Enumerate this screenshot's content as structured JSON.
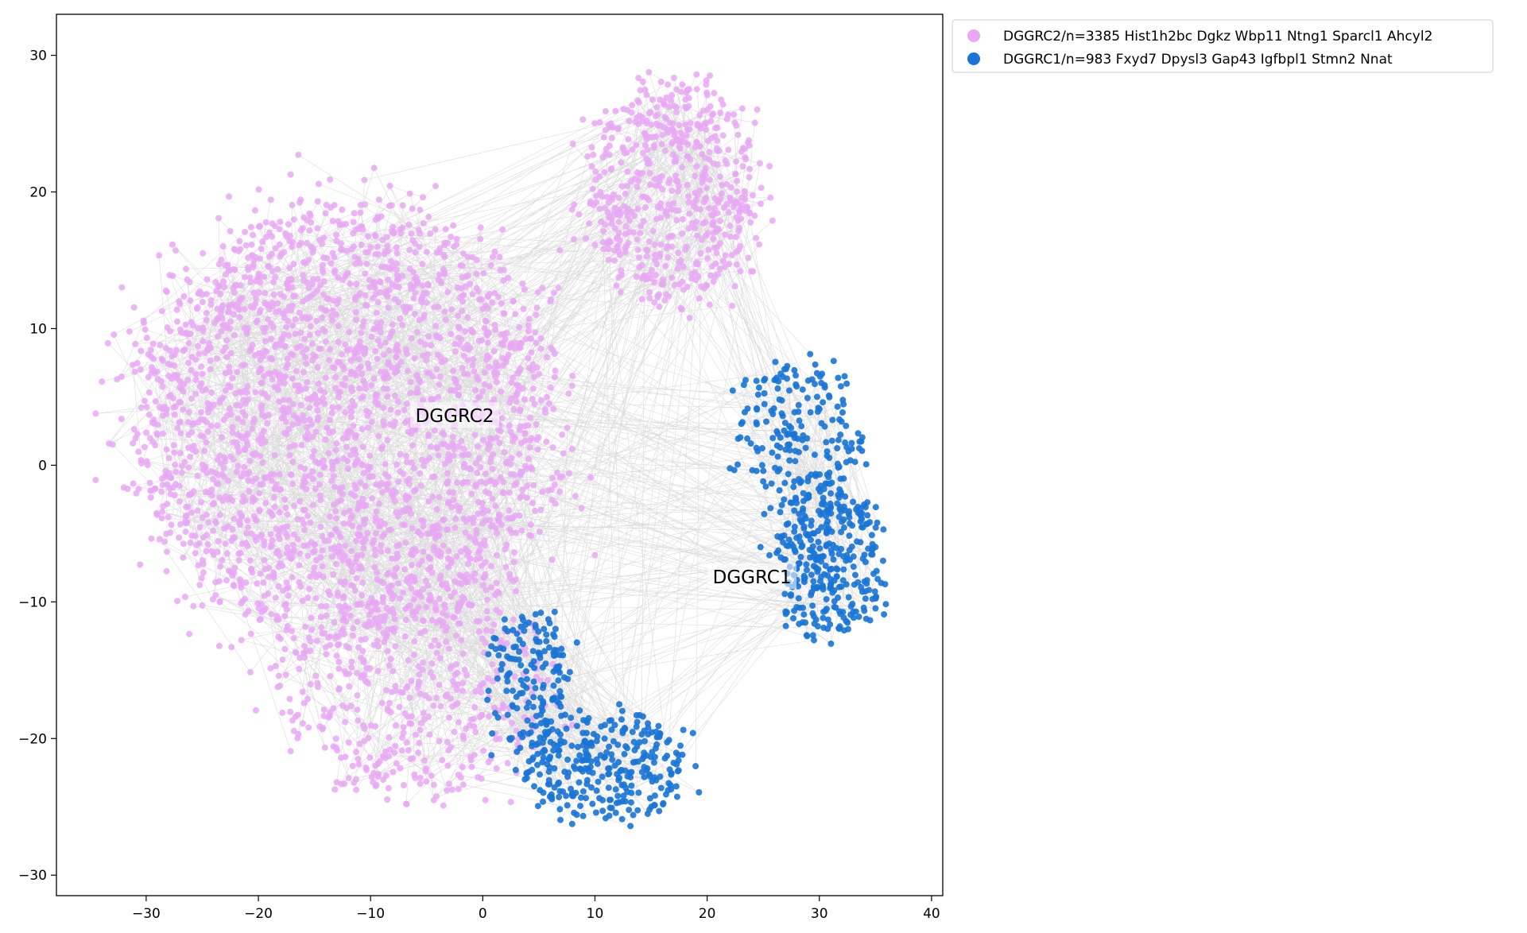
{
  "chart_data": {
    "type": "scatter",
    "xlim": [
      -38,
      41
    ],
    "ylim": [
      -31.5,
      33
    ],
    "xticks": [
      -30,
      -20,
      -10,
      0,
      10,
      20,
      30,
      40
    ],
    "yticks": [
      -30,
      -20,
      -10,
      0,
      10,
      20,
      30
    ],
    "xtick_labels": [
      "−30",
      "−20",
      "−10",
      "0",
      "10",
      "20",
      "30",
      "40"
    ],
    "ytick_labels": [
      "−30",
      "−20",
      "−10",
      "0",
      "10",
      "20",
      "30"
    ],
    "grid": false,
    "legend_position": "outside-upper-right",
    "series": [
      {
        "name": "DGGRC2/n=3385 Hist1h2bc Dgkz Wbp11 Ntng1 Sparcl1 Ahcyl2",
        "color": "#e8a8f5",
        "count": 3385,
        "regions": [
          {
            "cx": -12,
            "cy": 3,
            "rx": 20,
            "ry": 17,
            "weight": 0.7
          },
          {
            "cx": -6,
            "cy": -17,
            "rx": 13,
            "ry": 8,
            "weight": 0.12
          },
          {
            "cx": 17,
            "cy": 20,
            "rx": 8,
            "ry": 9,
            "weight": 0.18
          }
        ]
      },
      {
        "name": "DGGRC1/n=983 Fxyd7 Dpysl3 Gap43 Igfbpl1 Stmn2 Nnat",
        "color": "#1874d6",
        "count": 983,
        "regions": [
          {
            "cx": 31,
            "cy": -7,
            "rx": 5,
            "ry": 6,
            "weight": 0.35
          },
          {
            "cx": 28,
            "cy": 2,
            "rx": 6,
            "ry": 6,
            "weight": 0.2
          },
          {
            "cx": 11,
            "cy": -22,
            "rx": 8,
            "ry": 4,
            "weight": 0.3
          },
          {
            "cx": 4,
            "cy": -16,
            "rx": 4,
            "ry": 6,
            "weight": 0.15
          }
        ]
      }
    ],
    "annotations": [
      {
        "text": "DGGRC2",
        "x": -2.5,
        "y": 3.5
      },
      {
        "text": "DGGRC1",
        "x": 24,
        "y": -8.3
      }
    ],
    "edge_color": "#808080"
  }
}
